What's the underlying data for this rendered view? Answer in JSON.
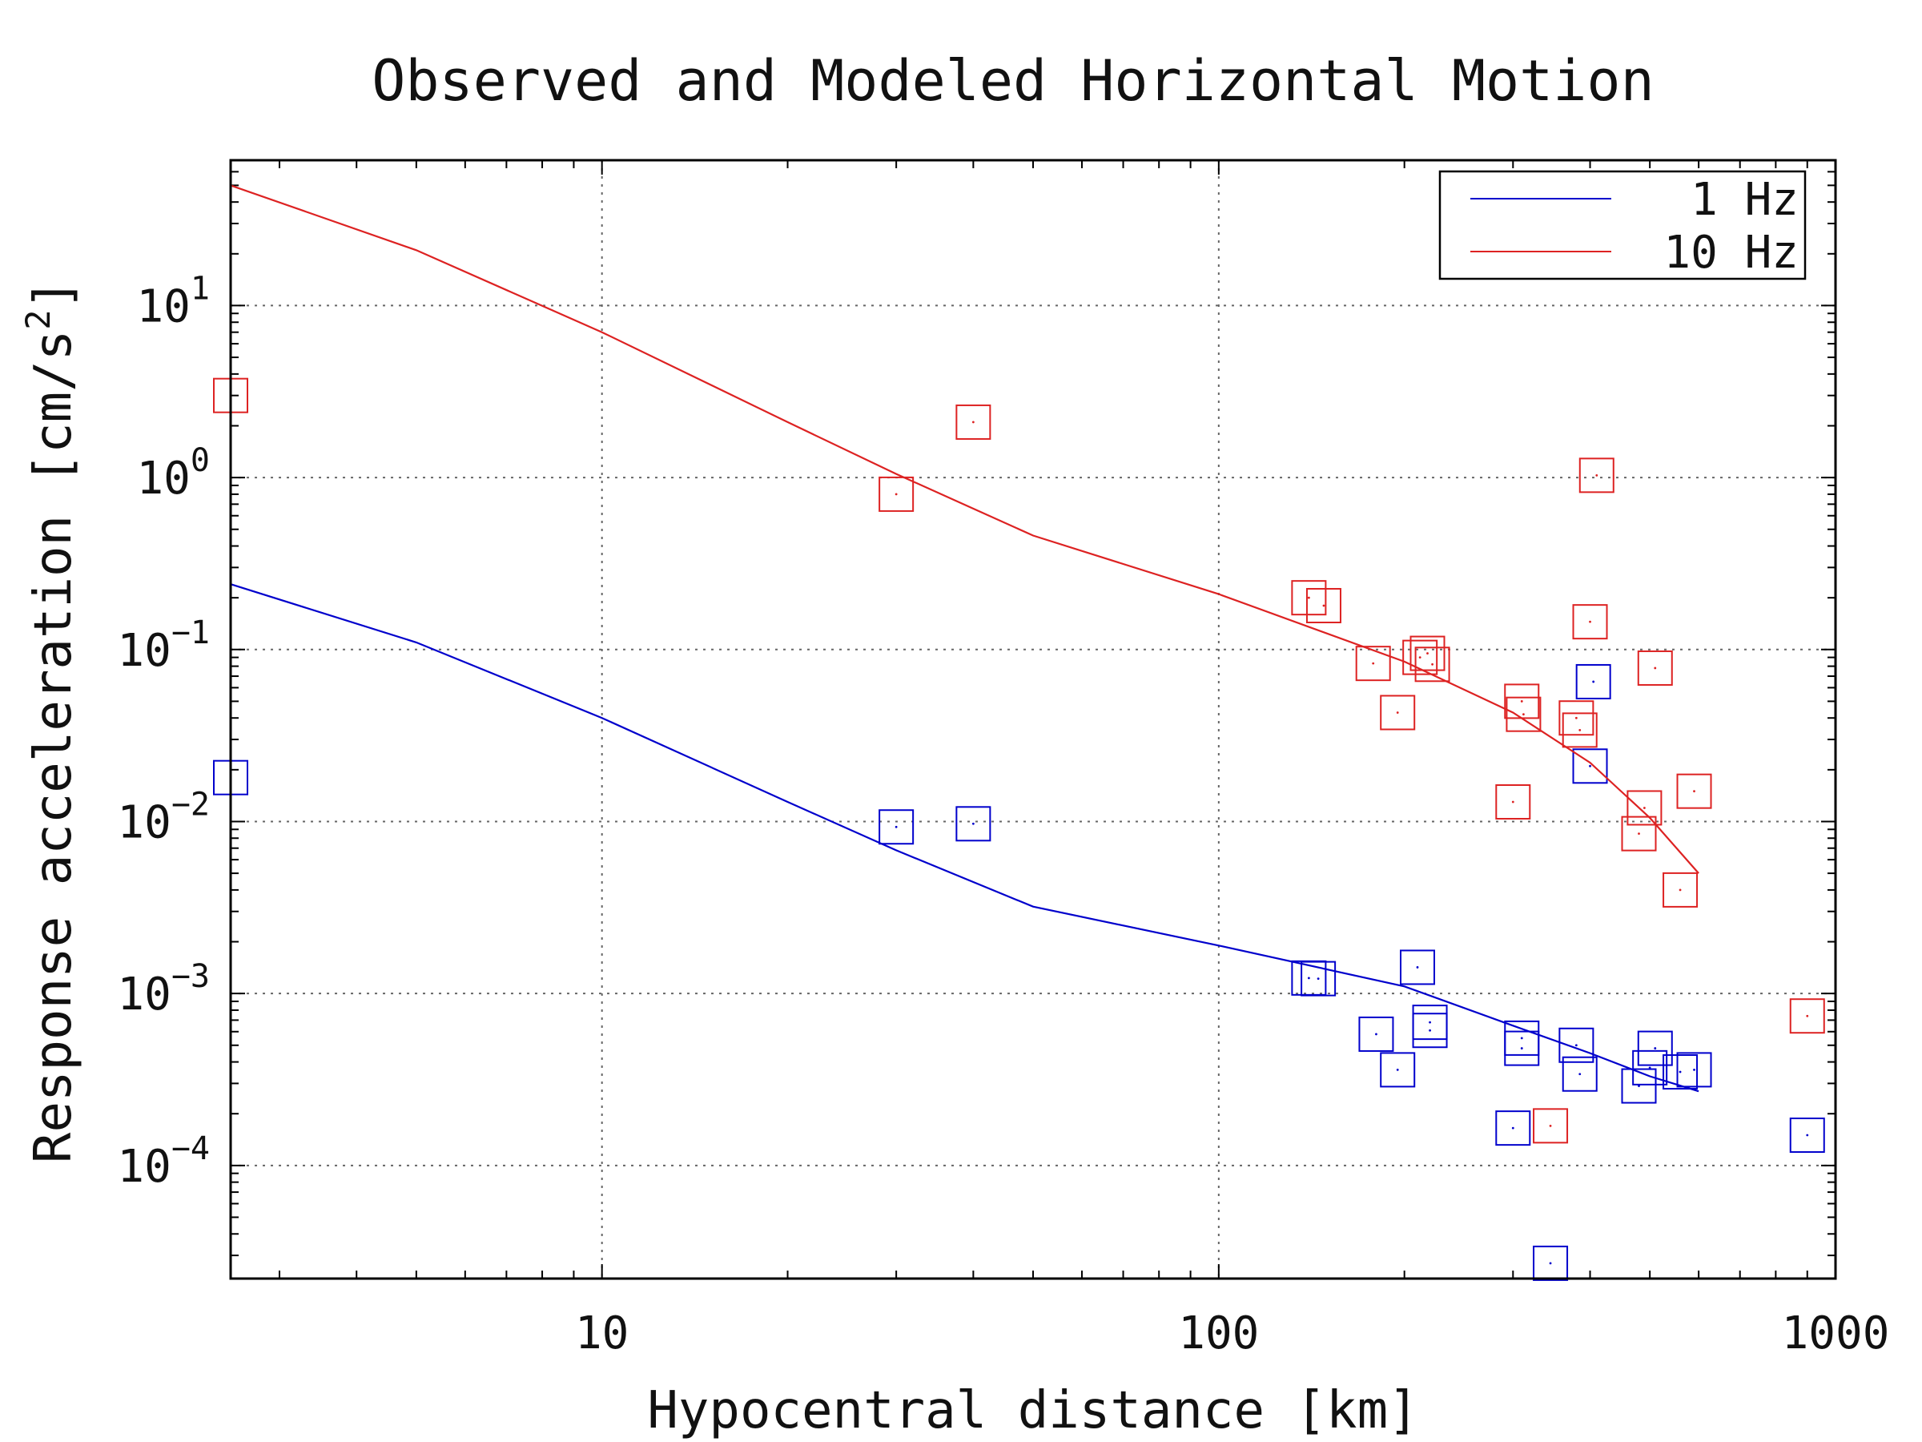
{
  "chart_data": {
    "type": "scatter",
    "title": "Observed and Modeled Horizontal Motion",
    "xlabel": "Hypocentral distance [km]",
    "ylabel_text": "Response acceleration [cm/s",
    "ylabel_sup": "2",
    "ylabel_close": "]",
    "x_scale": "log",
    "y_scale": "log",
    "xlim": [
      2.5,
      1000
    ],
    "ylim": [
      2.2e-05,
      70
    ],
    "grid": true,
    "legend_position": "top-right",
    "x_ticks": [
      {
        "value": 10,
        "label": "10"
      },
      {
        "value": 100,
        "label": "100"
      },
      {
        "value": 1000,
        "label": "1000"
      }
    ],
    "y_ticks": [
      {
        "value": 10,
        "base": "10",
        "exp": "1"
      },
      {
        "value": 1,
        "base": "10",
        "exp": "0"
      },
      {
        "value": 0.1,
        "base": "10",
        "exp": "−1"
      },
      {
        "value": 0.01,
        "base": "10",
        "exp": "−2"
      },
      {
        "value": 0.001,
        "base": "10",
        "exp": "−3"
      },
      {
        "value": 0.0001,
        "base": "10",
        "exp": "−4"
      }
    ],
    "series": [
      {
        "name": "1 Hz",
        "color": "#0000cc",
        "model": {
          "x": [
            2.5,
            5,
            10,
            20,
            30,
            50,
            100,
            200,
            300,
            400,
            500,
            600
          ],
          "y": [
            0.24,
            0.11,
            0.04,
            0.013,
            0.0068,
            0.0032,
            0.0019,
            0.0011,
            0.00065,
            0.00045,
            0.00033,
            0.00027
          ]
        },
        "observed": {
          "x": [
            2.5,
            30,
            40,
            140,
            145,
            180,
            195,
            210,
            220,
            220,
            300,
            310,
            310,
            380,
            385,
            400,
            405,
            480,
            500,
            510,
            560,
            590,
            900,
            345
          ],
          "y": [
            0.018,
            0.0093,
            0.0097,
            0.00123,
            0.00122,
            0.00058,
            0.00036,
            0.00142,
            0.00068,
            0.00061,
            0.000165,
            0.00055,
            0.00048,
            0.0005,
            0.00034,
            0.021,
            0.065,
            0.00029,
            0.00037,
            0.00048,
            0.00035,
            0.00036,
            0.00015,
            2.7e-05
          ]
        }
      },
      {
        "name": "10 Hz",
        "color": "#dd2222",
        "model": {
          "x": [
            2.5,
            5,
            10,
            20,
            30,
            50,
            100,
            200,
            300,
            400,
            500,
            600
          ],
          "y": [
            50,
            21,
            7,
            2.1,
            1.05,
            0.46,
            0.21,
            0.085,
            0.043,
            0.022,
            0.0105,
            0.005
          ]
        },
        "observed": {
          "x": [
            2.5,
            30,
            40,
            140,
            148,
            178,
            195,
            212,
            218,
            222,
            300,
            310,
            312,
            345,
            380,
            385,
            400,
            410,
            480,
            490,
            510,
            560,
            590,
            900
          ],
          "y": [
            3.0,
            0.8,
            2.1,
            0.2,
            0.18,
            0.083,
            0.043,
            0.09,
            0.095,
            0.082,
            0.013,
            0.05,
            0.042,
            0.00017,
            0.04,
            0.034,
            0.145,
            1.03,
            0.0085,
            0.012,
            0.078,
            0.004,
            0.015,
            0.00074
          ]
        }
      }
    ]
  }
}
